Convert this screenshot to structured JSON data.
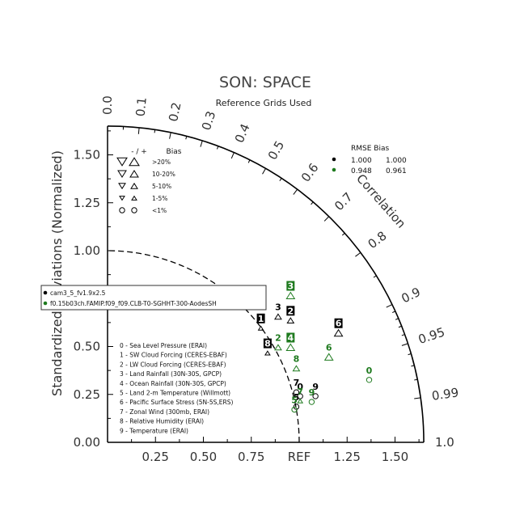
{
  "chart_data": {
    "type": "taylor",
    "title": "SON: SPACE",
    "subtitle": "Reference Grids Used",
    "ylabel": "Standardized Deviations (Normalized)",
    "xlabel_ref": "REF",
    "correlation_label": "Correlation",
    "std_range": [
      0,
      1.65
    ],
    "ref_arc_radius": 1.0,
    "y_ticks": [
      "0.00",
      "0.25",
      "0.50",
      "0.75",
      "1.00",
      "1.25",
      "1.50"
    ],
    "x_ticks": [
      {
        "value": 0.25,
        "label": "0.25"
      },
      {
        "value": 0.5,
        "label": "0.50"
      },
      {
        "value": 0.75,
        "label": "0.75"
      },
      {
        "value": 1.25,
        "label": "1.25"
      },
      {
        "value": 1.5,
        "label": "1.50"
      }
    ],
    "corr_labels": [
      {
        "r": 0.0,
        "label": "0.0"
      },
      {
        "r": 0.1,
        "label": "0.1"
      },
      {
        "r": 0.2,
        "label": "0.2"
      },
      {
        "r": 0.3,
        "label": "0.3"
      },
      {
        "r": 0.4,
        "label": "0.4"
      },
      {
        "r": 0.5,
        "label": "0.5"
      },
      {
        "r": 0.6,
        "label": "0.6"
      },
      {
        "r": 0.7,
        "label": "0.7"
      },
      {
        "r": 0.8,
        "label": "0.8"
      },
      {
        "r": 0.9,
        "label": "0.9"
      },
      {
        "r": 0.95,
        "label": "0.95"
      },
      {
        "r": 0.99,
        "label": "0.99"
      },
      {
        "r": 1.0,
        "label": "1.0"
      }
    ],
    "corr_ticks": [
      0.1,
      0.2,
      0.3,
      0.4,
      0.5,
      0.6,
      0.7,
      0.8,
      0.9,
      0.95,
      0.99
    ],
    "bias_legend": {
      "header": [
        "- / +",
        "Bias"
      ],
      "rows": [
        ">20%",
        "10-20%",
        "5-10%",
        "1-5%",
        "<1%"
      ]
    },
    "rmse_table": {
      "header": "RMSE  Bias",
      "rows": [
        {
          "color": "#000000",
          "rmse": "1.000",
          "bias": "1.000"
        },
        {
          "color": "#1e7a1e",
          "rmse": "0.948",
          "bias": "0.961"
        }
      ]
    },
    "cases": [
      {
        "name": "cam3_5_fv1.9x2.5",
        "color": "#000000"
      },
      {
        "name": "f0.15b03ch.FAMIP.f09_f09.CLB-T0-SGHHT-300-AodesSH",
        "color": "#1e7a1e"
      }
    ],
    "variables": [
      "0 - Sea Level Pressure (ERAI)",
      "1 - SW Cloud Forcing (CERES-EBAF)",
      "2 - LW Cloud Forcing (CERES-EBAF)",
      "3 - Land Rainfall (30N-30S, GPCP)",
      "4 - Ocean Rainfall (30N-30S, GPCP)",
      "5 - Land 2-m Temperature (Willmott)",
      "6 - Pacific Surface Stress (5N-5S,ERS)",
      "7 - Zonal Wind (300mb, ERAI)",
      "8 - Relative Humidity (ERAI)",
      "9 - Temperature (ERAI)"
    ],
    "series": [
      {
        "name": "cam3_5_fv1.9x2.5",
        "color": "#000000",
        "points": [
          {
            "var": "0",
            "x": 1.005,
            "y": 0.245,
            "bias": "<1%",
            "dir": "+"
          },
          {
            "var": "1",
            "x": 0.8,
            "y": 0.6,
            "bias": "1-5%",
            "dir": "+"
          },
          {
            "var": "2",
            "x": 0.955,
            "y": 0.64,
            "bias": "5-10%",
            "dir": "+"
          },
          {
            "var": "3",
            "x": 0.89,
            "y": 0.66,
            "bias": "5-10%",
            "dir": "+"
          },
          {
            "var": "5",
            "x": 0.985,
            "y": 0.19,
            "bias": "<1%",
            "dir": "+"
          },
          {
            "var": "6",
            "x": 1.205,
            "y": 0.575,
            "bias": "10-20%",
            "dir": "+"
          },
          {
            "var": "7",
            "x": 0.985,
            "y": 0.265,
            "bias": "<1%",
            "dir": "+"
          },
          {
            "var": "8",
            "x": 0.835,
            "y": 0.47,
            "bias": "1-5%",
            "dir": "+"
          },
          {
            "var": "9",
            "x": 1.085,
            "y": 0.245,
            "bias": "<1%",
            "dir": "+"
          }
        ]
      },
      {
        "name": "f0.15b03ch.FAMIP.f09_f09.CLB-T0-SGHHT-300-AodesSH",
        "color": "#1e7a1e",
        "points": [
          {
            "var": "0",
            "x": 1.365,
            "y": 0.33,
            "bias": "<1%",
            "dir": "+"
          },
          {
            "var": "2",
            "x": 0.89,
            "y": 0.5,
            "bias": "5-10%",
            "dir": "+"
          },
          {
            "var": "3",
            "x": 0.955,
            "y": 0.77,
            "bias": "10-20%",
            "dir": "+"
          },
          {
            "var": "4",
            "x": 0.955,
            "y": 0.5,
            "bias": "10-20%",
            "dir": "+"
          },
          {
            "var": "5",
            "x": 0.975,
            "y": 0.175,
            "bias": "<1%",
            "dir": "+"
          },
          {
            "var": "6",
            "x": 1.155,
            "y": 0.45,
            "bias": "10-20%",
            "dir": "+"
          },
          {
            "var": "7",
            "x": 1.005,
            "y": 0.22,
            "bias": "1-5%",
            "dir": "+"
          },
          {
            "var": "8",
            "x": 0.985,
            "y": 0.39,
            "bias": "5-10%",
            "dir": "+"
          },
          {
            "var": "9",
            "x": 1.065,
            "y": 0.215,
            "bias": "<1%",
            "dir": "+"
          }
        ]
      }
    ]
  }
}
